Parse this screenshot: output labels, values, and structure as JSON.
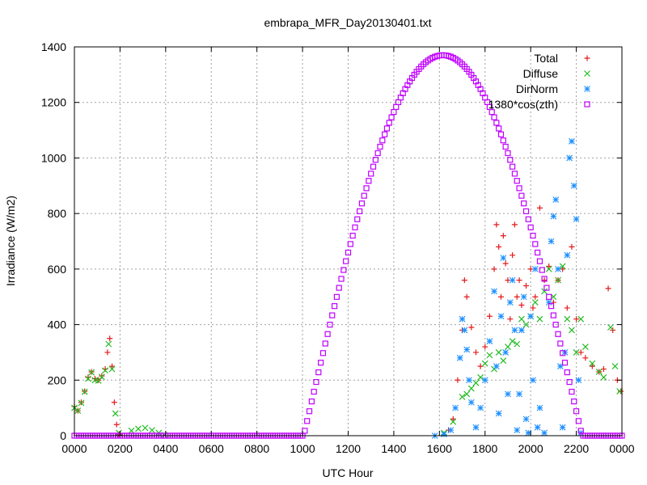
{
  "chart_data": {
    "type": "scatter",
    "title": "embrapa_MFR_Day20130401.txt",
    "xlabel": "UTC Hour",
    "ylabel": "Irradiance (W/m2)",
    "xlim": [
      0,
      2400
    ],
    "ylim": [
      0,
      1400
    ],
    "x_ticks": [
      "0000",
      "0200",
      "0400",
      "0600",
      "0800",
      "1000",
      "1200",
      "1400",
      "1600",
      "1800",
      "2000",
      "2200",
      "0000"
    ],
    "y_ticks": [
      "0",
      "200",
      "400",
      "600",
      "800",
      "1000",
      "1200",
      "1400"
    ],
    "grid": true,
    "legend_position": "top-right",
    "colors": {
      "total": "#e41a1c",
      "diffuse": "#22bb22",
      "dirnorm": "#1e90ff",
      "cos": "#c000ff"
    },
    "series": [
      {
        "name": "Total",
        "marker": "plus",
        "color": "#e41a1c",
        "points": [
          [
            0,
            105
          ],
          [
            15,
            90
          ],
          [
            30,
            120
          ],
          [
            45,
            160
          ],
          [
            60,
            210
          ],
          [
            75,
            230
          ],
          [
            90,
            205
          ],
          [
            105,
            200
          ],
          [
            120,
            215
          ],
          [
            135,
            240
          ],
          [
            145,
            300
          ],
          [
            155,
            350
          ],
          [
            165,
            250
          ],
          [
            175,
            120
          ],
          [
            185,
            40
          ],
          [
            195,
            5
          ],
          [
            1640,
            20
          ],
          [
            1660,
            60
          ],
          [
            1680,
            200
          ],
          [
            1700,
            380
          ],
          [
            1710,
            560
          ],
          [
            1720,
            500
          ],
          [
            1740,
            390
          ],
          [
            1760,
            300
          ],
          [
            1780,
            250
          ],
          [
            1800,
            320
          ],
          [
            1820,
            430
          ],
          [
            1840,
            600
          ],
          [
            1850,
            760
          ],
          [
            1860,
            680
          ],
          [
            1870,
            500
          ],
          [
            1880,
            720
          ],
          [
            1890,
            620
          ],
          [
            1900,
            560
          ],
          [
            1910,
            420
          ],
          [
            1920,
            650
          ],
          [
            1930,
            760
          ],
          [
            1940,
            500
          ],
          [
            1950,
            560
          ],
          [
            1960,
            470
          ],
          [
            1980,
            540
          ],
          [
            2000,
            600
          ],
          [
            2010,
            460
          ],
          [
            2020,
            500
          ],
          [
            2040,
            820
          ],
          [
            2060,
            560
          ],
          [
            2080,
            610
          ],
          [
            2100,
            480
          ],
          [
            2120,
            560
          ],
          [
            2140,
            600
          ],
          [
            2160,
            460
          ],
          [
            2180,
            680
          ],
          [
            2200,
            420
          ],
          [
            2220,
            300
          ],
          [
            2240,
            280
          ],
          [
            2270,
            250
          ],
          [
            2300,
            230
          ],
          [
            2320,
            240
          ],
          [
            2340,
            530
          ],
          [
            2360,
            380
          ],
          [
            2380,
            200
          ],
          [
            2395,
            160
          ]
        ]
      },
      {
        "name": "Diffuse",
        "marker": "x",
        "color": "#22bb22",
        "points": [
          [
            0,
            100
          ],
          [
            15,
            90
          ],
          [
            30,
            118
          ],
          [
            45,
            158
          ],
          [
            60,
            205
          ],
          [
            75,
            228
          ],
          [
            90,
            200
          ],
          [
            105,
            198
          ],
          [
            120,
            212
          ],
          [
            135,
            235
          ],
          [
            150,
            330
          ],
          [
            165,
            240
          ],
          [
            180,
            80
          ],
          [
            195,
            10
          ],
          [
            250,
            18
          ],
          [
            280,
            25
          ],
          [
            310,
            28
          ],
          [
            340,
            20
          ],
          [
            370,
            10
          ],
          [
            395,
            2
          ],
          [
            1620,
            10
          ],
          [
            1660,
            50
          ],
          [
            1700,
            140
          ],
          [
            1720,
            150
          ],
          [
            1740,
            170
          ],
          [
            1760,
            190
          ],
          [
            1780,
            210
          ],
          [
            1800,
            260
          ],
          [
            1820,
            290
          ],
          [
            1840,
            240
          ],
          [
            1860,
            300
          ],
          [
            1880,
            270
          ],
          [
            1900,
            320
          ],
          [
            1920,
            340
          ],
          [
            1940,
            330
          ],
          [
            1960,
            420
          ],
          [
            1980,
            400
          ],
          [
            2000,
            430
          ],
          [
            2020,
            480
          ],
          [
            2040,
            420
          ],
          [
            2060,
            520
          ],
          [
            2080,
            600
          ],
          [
            2100,
            500
          ],
          [
            2120,
            560
          ],
          [
            2140,
            610
          ],
          [
            2160,
            420
          ],
          [
            2180,
            380
          ],
          [
            2200,
            300
          ],
          [
            2220,
            420
          ],
          [
            2240,
            320
          ],
          [
            2270,
            260
          ],
          [
            2300,
            230
          ],
          [
            2320,
            210
          ],
          [
            2350,
            390
          ],
          [
            2370,
            250
          ],
          [
            2390,
            160
          ]
        ]
      },
      {
        "name": "DirNorm",
        "marker": "star",
        "color": "#1e90ff",
        "points": [
          [
            1580,
            0
          ],
          [
            1620,
            5
          ],
          [
            1650,
            20
          ],
          [
            1670,
            100
          ],
          [
            1690,
            280
          ],
          [
            1700,
            420
          ],
          [
            1710,
            380
          ],
          [
            1720,
            310
          ],
          [
            1730,
            200
          ],
          [
            1740,
            120
          ],
          [
            1760,
            30
          ],
          [
            1780,
            100
          ],
          [
            1800,
            200
          ],
          [
            1820,
            340
          ],
          [
            1840,
            520
          ],
          [
            1850,
            250
          ],
          [
            1860,
            80
          ],
          [
            1870,
            430
          ],
          [
            1880,
            640
          ],
          [
            1890,
            300
          ],
          [
            1900,
            150
          ],
          [
            1910,
            480
          ],
          [
            1920,
            560
          ],
          [
            1930,
            380
          ],
          [
            1940,
            20
          ],
          [
            1950,
            150
          ],
          [
            1960,
            380
          ],
          [
            1970,
            500
          ],
          [
            1980,
            60
          ],
          [
            1990,
            10
          ],
          [
            2000,
            430
          ],
          [
            2010,
            200
          ],
          [
            2020,
            600
          ],
          [
            2030,
            30
          ],
          [
            2040,
            100
          ],
          [
            2060,
            10
          ],
          [
            2080,
            480
          ],
          [
            2090,
            700
          ],
          [
            2100,
            790
          ],
          [
            2110,
            850
          ],
          [
            2120,
            600
          ],
          [
            2130,
            250
          ],
          [
            2140,
            30
          ],
          [
            2150,
            300
          ],
          [
            2160,
            650
          ],
          [
            2170,
            1000
          ],
          [
            2180,
            1060
          ],
          [
            2190,
            900
          ],
          [
            2200,
            780
          ],
          [
            2210,
            200
          ],
          [
            2220,
            10
          ]
        ]
      },
      {
        "name": "1380*cos(zth)",
        "marker": "square",
        "color": "#c000ff",
        "curve": {
          "type": "cosine",
          "amplitude": 1370,
          "start": 1005,
          "peak": 1615,
          "end": 2225
        }
      }
    ]
  }
}
